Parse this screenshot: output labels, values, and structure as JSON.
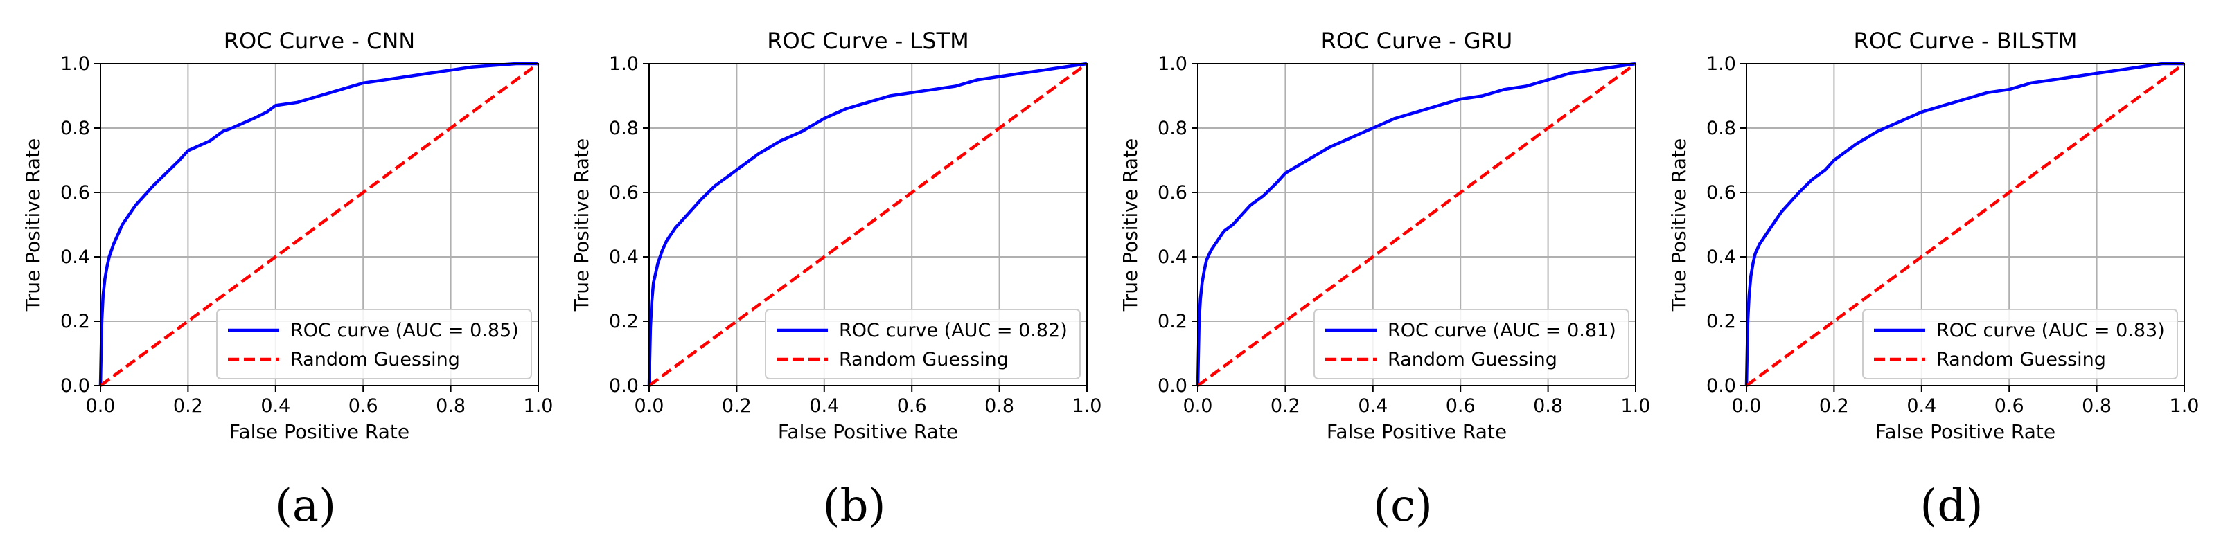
{
  "chart_data": [
    {
      "type": "line",
      "title": "ROC Curve - CNN",
      "xlabel": "False Positive Rate",
      "ylabel": "True Positive Rate",
      "xlim": [
        0.0,
        1.0
      ],
      "ylim": [
        0.0,
        1.0
      ],
      "xticks": [
        "0.0",
        "0.2",
        "0.4",
        "0.6",
        "0.8",
        "1.0"
      ],
      "yticks": [
        "0.0",
        "0.2",
        "0.4",
        "0.6",
        "0.8",
        "1.0"
      ],
      "grid": true,
      "legend_position": "lower-right",
      "panel_label": "(a)",
      "series": [
        {
          "name": "ROC curve (AUC = 0.85)",
          "color": "#0000ff",
          "style": "solid",
          "x": [
            0.0,
            0.003,
            0.006,
            0.01,
            0.015,
            0.02,
            0.03,
            0.04,
            0.05,
            0.06,
            0.08,
            0.1,
            0.12,
            0.15,
            0.18,
            0.2,
            0.25,
            0.28,
            0.3,
            0.35,
            0.38,
            0.4,
            0.45,
            0.5,
            0.55,
            0.6,
            0.65,
            0.7,
            0.75,
            0.8,
            0.85,
            0.9,
            0.95,
            1.0
          ],
          "y": [
            0.0,
            0.2,
            0.28,
            0.33,
            0.37,
            0.4,
            0.44,
            0.47,
            0.5,
            0.52,
            0.56,
            0.59,
            0.62,
            0.66,
            0.7,
            0.73,
            0.76,
            0.79,
            0.8,
            0.83,
            0.85,
            0.87,
            0.88,
            0.9,
            0.92,
            0.94,
            0.95,
            0.96,
            0.97,
            0.98,
            0.99,
            0.995,
            1.0,
            1.0
          ]
        },
        {
          "name": "Random Guessing",
          "color": "#ff0000",
          "style": "dashed",
          "x": [
            0.0,
            1.0
          ],
          "y": [
            0.0,
            1.0
          ]
        }
      ]
    },
    {
      "type": "line",
      "title": "ROC Curve - LSTM",
      "xlabel": "False Positive Rate",
      "ylabel": "True Positive Rate",
      "xlim": [
        0.0,
        1.0
      ],
      "ylim": [
        0.0,
        1.0
      ],
      "xticks": [
        "0.0",
        "0.2",
        "0.4",
        "0.6",
        "0.8",
        "1.0"
      ],
      "yticks": [
        "0.0",
        "0.2",
        "0.4",
        "0.6",
        "0.8",
        "1.0"
      ],
      "grid": true,
      "legend_position": "lower-right",
      "panel_label": "(b)",
      "series": [
        {
          "name": "ROC curve (AUC = 0.82)",
          "color": "#0000ff",
          "style": "solid",
          "x": [
            0.0,
            0.003,
            0.006,
            0.01,
            0.015,
            0.02,
            0.03,
            0.04,
            0.05,
            0.06,
            0.08,
            0.1,
            0.12,
            0.15,
            0.18,
            0.2,
            0.25,
            0.3,
            0.35,
            0.4,
            0.45,
            0.5,
            0.55,
            0.6,
            0.65,
            0.7,
            0.75,
            0.8,
            0.85,
            0.9,
            0.95,
            1.0
          ],
          "y": [
            0.0,
            0.18,
            0.26,
            0.32,
            0.35,
            0.38,
            0.42,
            0.45,
            0.47,
            0.49,
            0.52,
            0.55,
            0.58,
            0.62,
            0.65,
            0.67,
            0.72,
            0.76,
            0.79,
            0.83,
            0.86,
            0.88,
            0.9,
            0.91,
            0.92,
            0.93,
            0.95,
            0.96,
            0.97,
            0.98,
            0.99,
            1.0
          ]
        },
        {
          "name": "Random Guessing",
          "color": "#ff0000",
          "style": "dashed",
          "x": [
            0.0,
            1.0
          ],
          "y": [
            0.0,
            1.0
          ]
        }
      ]
    },
    {
      "type": "line",
      "title": "ROC Curve - GRU",
      "xlabel": "False Positive Rate",
      "ylabel": "True Positive Rate",
      "xlim": [
        0.0,
        1.0
      ],
      "ylim": [
        0.0,
        1.0
      ],
      "xticks": [
        "0.0",
        "0.2",
        "0.4",
        "0.6",
        "0.8",
        "1.0"
      ],
      "yticks": [
        "0.0",
        "0.2",
        "0.4",
        "0.6",
        "0.8",
        "1.0"
      ],
      "grid": true,
      "legend_position": "lower-right",
      "panel_label": "(c)",
      "series": [
        {
          "name": "ROC curve (AUC = 0.81)",
          "color": "#0000ff",
          "style": "solid",
          "x": [
            0.0,
            0.003,
            0.006,
            0.01,
            0.015,
            0.02,
            0.03,
            0.04,
            0.05,
            0.06,
            0.08,
            0.1,
            0.12,
            0.15,
            0.18,
            0.2,
            0.25,
            0.3,
            0.35,
            0.4,
            0.45,
            0.5,
            0.55,
            0.6,
            0.65,
            0.7,
            0.75,
            0.8,
            0.85,
            0.9,
            0.95,
            1.0
          ],
          "y": [
            0.0,
            0.2,
            0.27,
            0.32,
            0.36,
            0.39,
            0.42,
            0.44,
            0.46,
            0.48,
            0.5,
            0.53,
            0.56,
            0.59,
            0.63,
            0.66,
            0.7,
            0.74,
            0.77,
            0.8,
            0.83,
            0.85,
            0.87,
            0.89,
            0.9,
            0.92,
            0.93,
            0.95,
            0.97,
            0.98,
            0.99,
            1.0
          ]
        },
        {
          "name": "Random Guessing",
          "color": "#ff0000",
          "style": "dashed",
          "x": [
            0.0,
            1.0
          ],
          "y": [
            0.0,
            1.0
          ]
        }
      ]
    },
    {
      "type": "line",
      "title": "ROC Curve - BILSTM",
      "xlabel": "False Positive Rate",
      "ylabel": "True Positive Rate",
      "xlim": [
        0.0,
        1.0
      ],
      "ylim": [
        0.0,
        1.0
      ],
      "xticks": [
        "0.0",
        "0.2",
        "0.4",
        "0.6",
        "0.8",
        "1.0"
      ],
      "yticks": [
        "0.0",
        "0.2",
        "0.4",
        "0.6",
        "0.8",
        "1.0"
      ],
      "grid": true,
      "legend_position": "lower-right",
      "panel_label": "(d)",
      "series": [
        {
          "name": "ROC curve (AUC = 0.83)",
          "color": "#0000ff",
          "style": "solid",
          "x": [
            0.0,
            0.003,
            0.006,
            0.01,
            0.015,
            0.02,
            0.03,
            0.04,
            0.05,
            0.06,
            0.08,
            0.1,
            0.12,
            0.15,
            0.18,
            0.2,
            0.25,
            0.3,
            0.35,
            0.4,
            0.45,
            0.5,
            0.55,
            0.6,
            0.65,
            0.7,
            0.75,
            0.8,
            0.85,
            0.9,
            0.95,
            1.0
          ],
          "y": [
            0.0,
            0.2,
            0.28,
            0.34,
            0.38,
            0.41,
            0.44,
            0.46,
            0.48,
            0.5,
            0.54,
            0.57,
            0.6,
            0.64,
            0.67,
            0.7,
            0.75,
            0.79,
            0.82,
            0.85,
            0.87,
            0.89,
            0.91,
            0.92,
            0.94,
            0.95,
            0.96,
            0.97,
            0.98,
            0.99,
            1.0,
            1.0
          ]
        },
        {
          "name": "Random Guessing",
          "color": "#ff0000",
          "style": "dashed",
          "x": [
            0.0,
            1.0
          ],
          "y": [
            0.0,
            1.0
          ]
        }
      ]
    }
  ]
}
